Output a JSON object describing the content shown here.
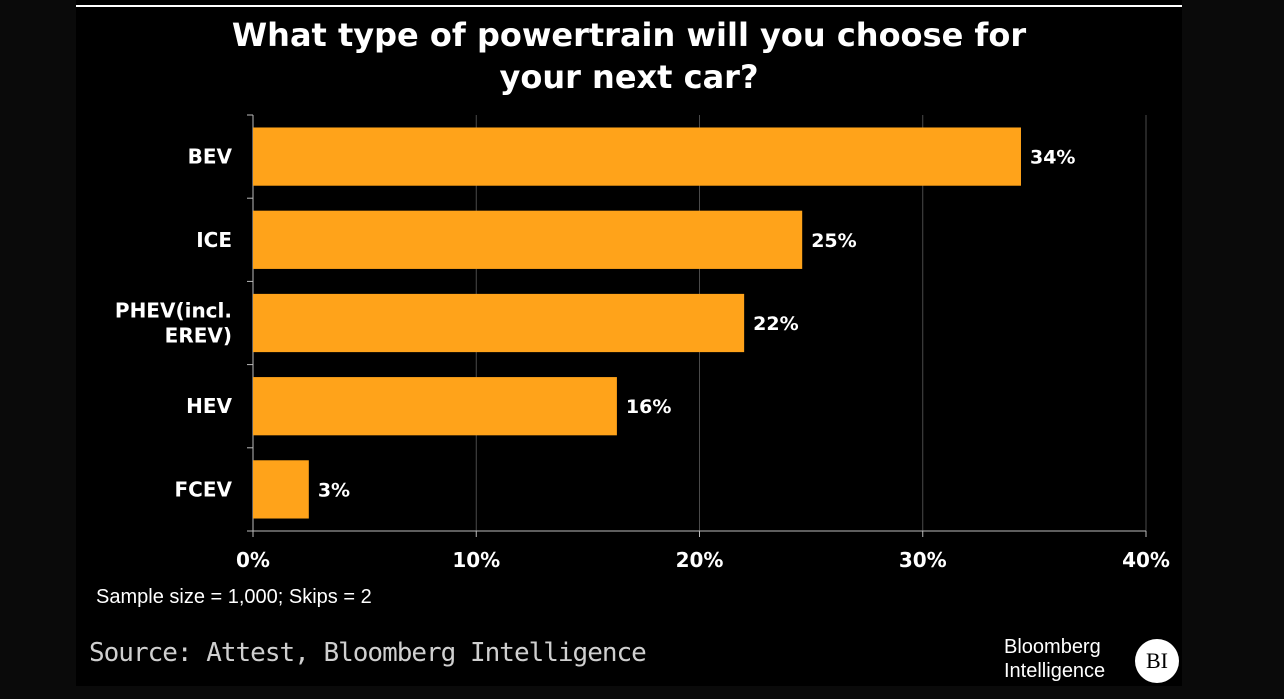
{
  "title": "What type of powertrain will you choose for\nyour next car?",
  "note": "Sample size = 1,000; Skips = 2",
  "source": "Source: Attest, Bloomberg Intelligence",
  "logo": {
    "text": "Bloomberg\nIntelligence",
    "badge": "BI"
  },
  "colors": {
    "bar": "#FFA31A",
    "background": "#000000",
    "grid": "#4a4a4a",
    "text": "#ffffff"
  },
  "chart_data": {
    "type": "bar",
    "orientation": "horizontal",
    "categories": [
      "BEV",
      "ICE",
      "PHEV(incl.\nEREV)",
      "HEV",
      "FCEV"
    ],
    "values": [
      34.4,
      24.6,
      22,
      16.3,
      2.5
    ],
    "value_labels": [
      "34%",
      "25%",
      "22%",
      "16%",
      "3%"
    ],
    "xlim": [
      0,
      40
    ],
    "xticks": [
      0,
      10,
      20,
      30,
      40
    ],
    "xtick_labels": [
      "0%",
      "10%",
      "20%",
      "30%",
      "40%"
    ],
    "grid": true
  }
}
